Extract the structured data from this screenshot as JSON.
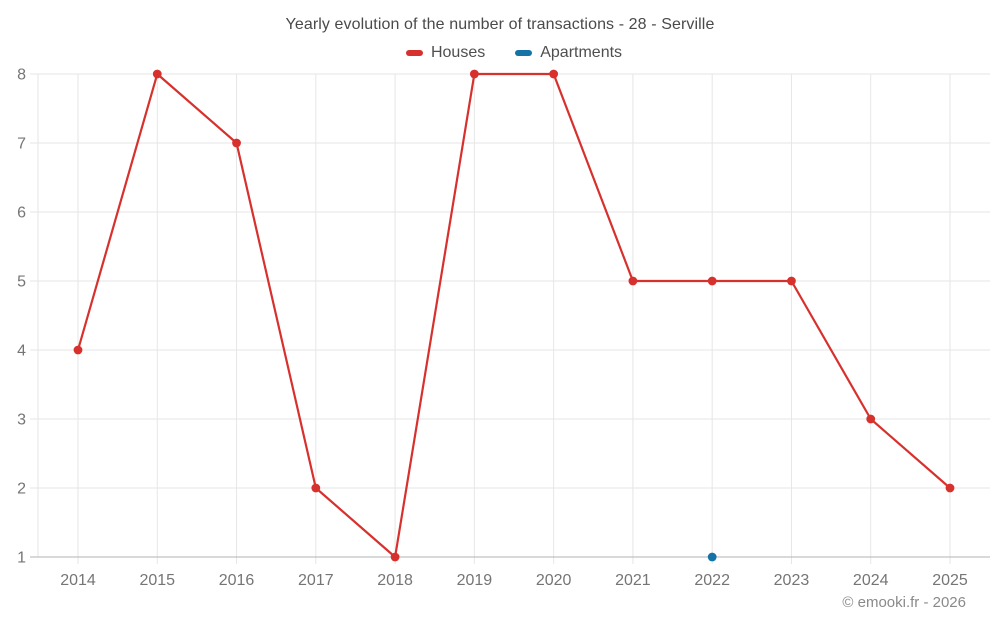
{
  "title": "Yearly evolution of the number of transactions - 28 - Serville",
  "footer": "© emooki.fr - 2026",
  "legend": {
    "items": [
      {
        "label": "Houses",
        "color": "#d7312e"
      },
      {
        "label": "Apartments",
        "color": "#1573a6"
      }
    ]
  },
  "colors": {
    "background": "#ffffff",
    "grid": "#e6e6e6",
    "axis_line": "#b3b3b3",
    "tick_label": "#757575",
    "title_text": "#4a4a4a",
    "legend_text": "#4f4f4f",
    "footer_text": "#8a8a8a",
    "houses_series": "#d7312e",
    "apartments_series": "#1573a6"
  },
  "chart_data": {
    "type": "line",
    "title": "Yearly evolution of the number of transactions - 28 - Serville",
    "x": [
      "2014",
      "2015",
      "2016",
      "2017",
      "2018",
      "2019",
      "2020",
      "2021",
      "2022",
      "2023",
      "2024",
      "2025"
    ],
    "series": [
      {
        "name": "Houses",
        "color": "#d7312e",
        "values": [
          4,
          8,
          7,
          2,
          1,
          8,
          8,
          5,
          5,
          5,
          3,
          2
        ],
        "marker": "circle"
      },
      {
        "name": "Apartments",
        "color": "#1573a6",
        "values": [
          null,
          null,
          null,
          null,
          null,
          null,
          null,
          null,
          1,
          null,
          null,
          null
        ],
        "marker": "circle"
      }
    ],
    "xlabel": "",
    "ylabel": "",
    "ylim": [
      1,
      8
    ],
    "yticks": [
      1,
      2,
      3,
      4,
      5,
      6,
      7,
      8
    ],
    "grid": true,
    "legend_position": "top"
  }
}
